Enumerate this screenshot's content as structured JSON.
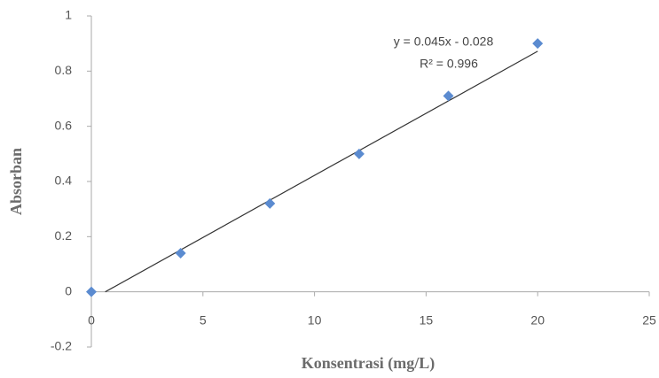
{
  "chart_data": {
    "type": "scatter",
    "x_label": "Konsentrasi (mg/L)",
    "y_label": "Absorban",
    "x": [
      0,
      4,
      8,
      12,
      16,
      20
    ],
    "series": [
      {
        "color": "#5b8bd0",
        "values": [
          0,
          0.14,
          0.32,
          0.5,
          0.71,
          0.9
        ]
      }
    ],
    "trendline": {
      "slope": 0.045,
      "intercept": -0.028,
      "color": "#333333"
    },
    "annotations": [
      "y = 0.045x - 0.028",
      "R² = 0.996"
    ],
    "xlim": [
      0,
      25
    ],
    "xticks": [
      0,
      5,
      10,
      15,
      20,
      25
    ],
    "ylim": [
      -0.2,
      1
    ],
    "yticks": [
      -0.2,
      0,
      0.2,
      0.4,
      0.6,
      0.8,
      1
    ],
    "grid": false
  }
}
